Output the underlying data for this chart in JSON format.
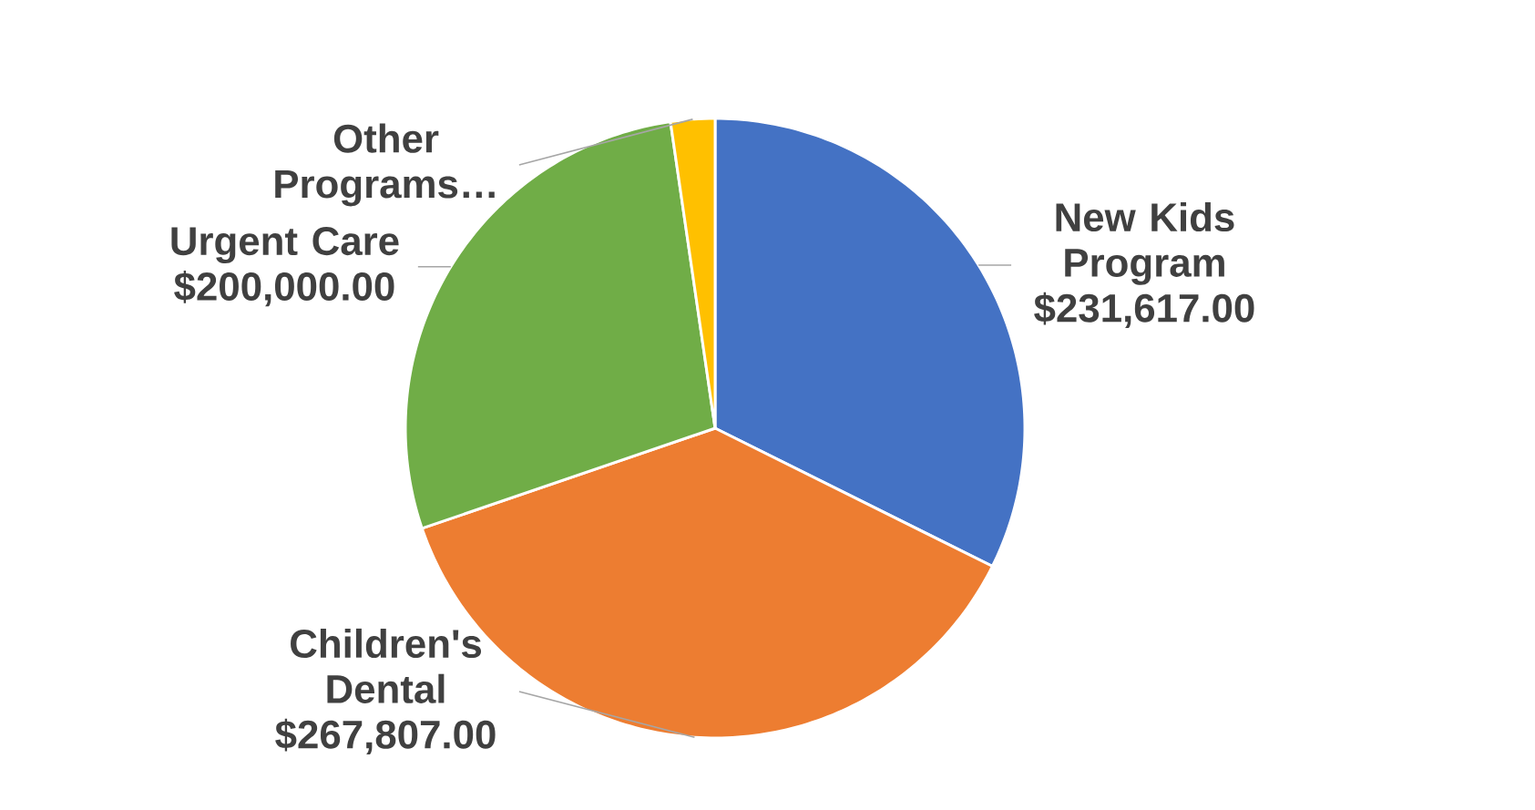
{
  "chart_data": {
    "type": "pie",
    "categories": [
      "New Kids Program",
      "Children's Dental",
      "Urgent Care",
      "Other Programs…"
    ],
    "values": [
      231617,
      267807,
      200000,
      16500
    ],
    "colors": [
      "#4472c4",
      "#ed7d31",
      "#70ad47",
      "#ffc000"
    ],
    "value_labels": [
      "$231,617.00",
      "$267,807.00",
      "$200,000.00",
      null
    ]
  }
}
